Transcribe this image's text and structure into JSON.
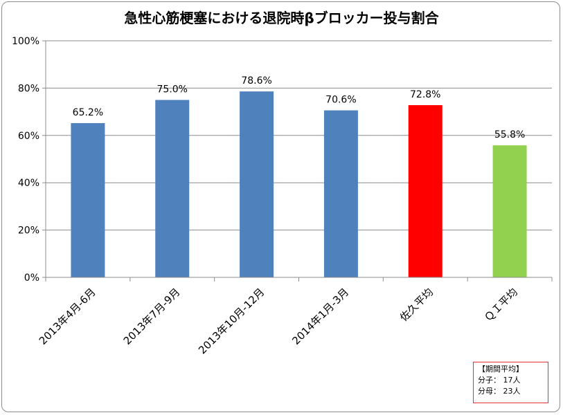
{
  "chart_data": {
    "type": "bar",
    "title": "急性心筋梗塞における退院時βブロッカー投与割合",
    "categories": [
      "2013年4月-6月",
      "2013年7月-9月",
      "2013年10月-12月",
      "2014年1月-3月",
      "佐久平均",
      "ＱＩ平均"
    ],
    "values": [
      65.2,
      75.0,
      78.6,
      70.6,
      72.8,
      55.8
    ],
    "data_labels": [
      "65.2%",
      "75.0%",
      "78.6%",
      "70.6%",
      "72.8%",
      "55.8%"
    ],
    "bar_colors": [
      "#4f81bd",
      "#4f81bd",
      "#4f81bd",
      "#4f81bd",
      "#ff0000",
      "#92d050"
    ],
    "ylim": [
      0,
      100
    ],
    "yticks": [
      0,
      20,
      40,
      60,
      80,
      100
    ],
    "ytick_labels": [
      "0%",
      "20%",
      "40%",
      "60%",
      "80%",
      "100%"
    ],
    "grid": true,
    "xlabel": "",
    "ylabel": ""
  },
  "summary_box": {
    "title": "【期間平均】",
    "numerator": "分子：  17人",
    "denominator": "分母：  23人",
    "border_color": "#e03030"
  }
}
